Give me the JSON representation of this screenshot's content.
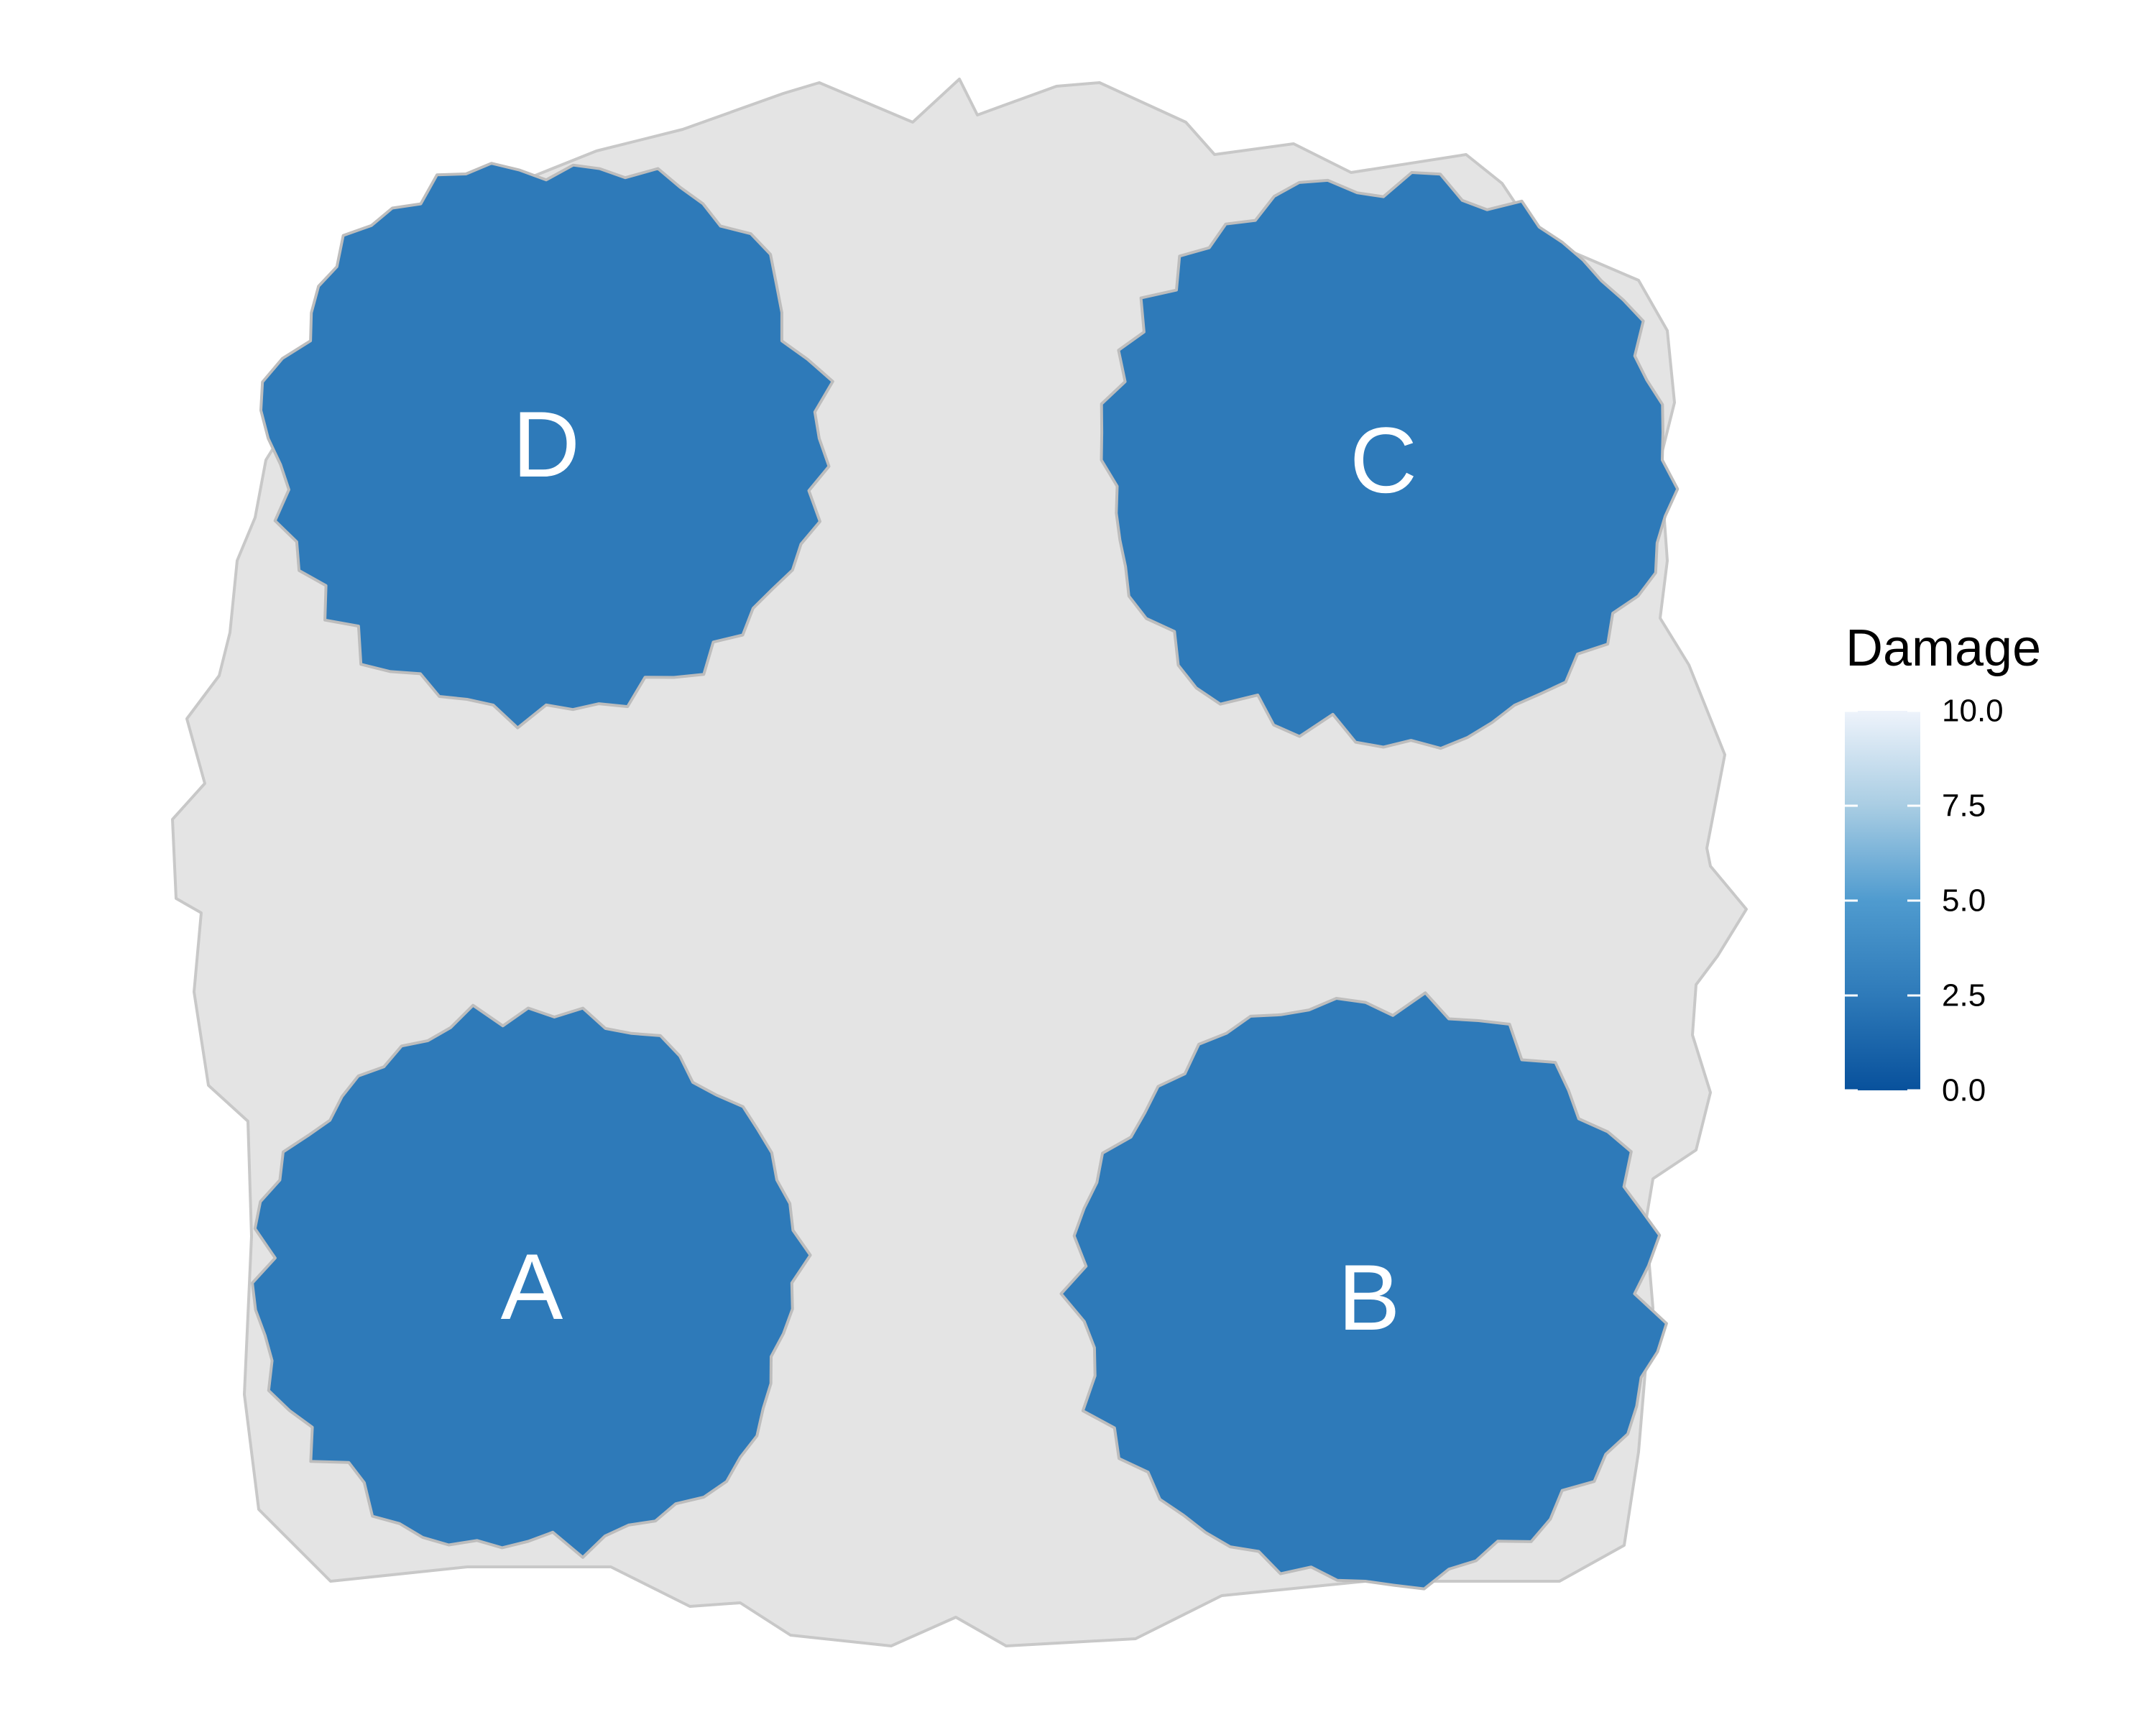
{
  "chart_data": {
    "type": "heatmap",
    "legend": {
      "title": "Damage",
      "scale": [
        0,
        10
      ],
      "breaks": [
        0,
        2.5,
        5,
        7.5,
        10
      ],
      "tick_labels": [
        "0.0",
        "2.5",
        "5.0",
        "7.5",
        "10.0"
      ],
      "placement": "right",
      "colors": {
        "low": "#08519c",
        "mid": "#6baed6",
        "high": "#eef3fb"
      }
    },
    "background_region": {
      "fill": "#e4e4e4",
      "stroke": "#c8c8c8"
    },
    "regions": [
      {
        "label": "A",
        "damage": 2.5
      },
      {
        "label": "B",
        "damage": 2.5
      },
      {
        "label": "C",
        "damage": 2.5
      },
      {
        "label": "D",
        "damage": 2.5
      }
    ],
    "grid": false
  }
}
